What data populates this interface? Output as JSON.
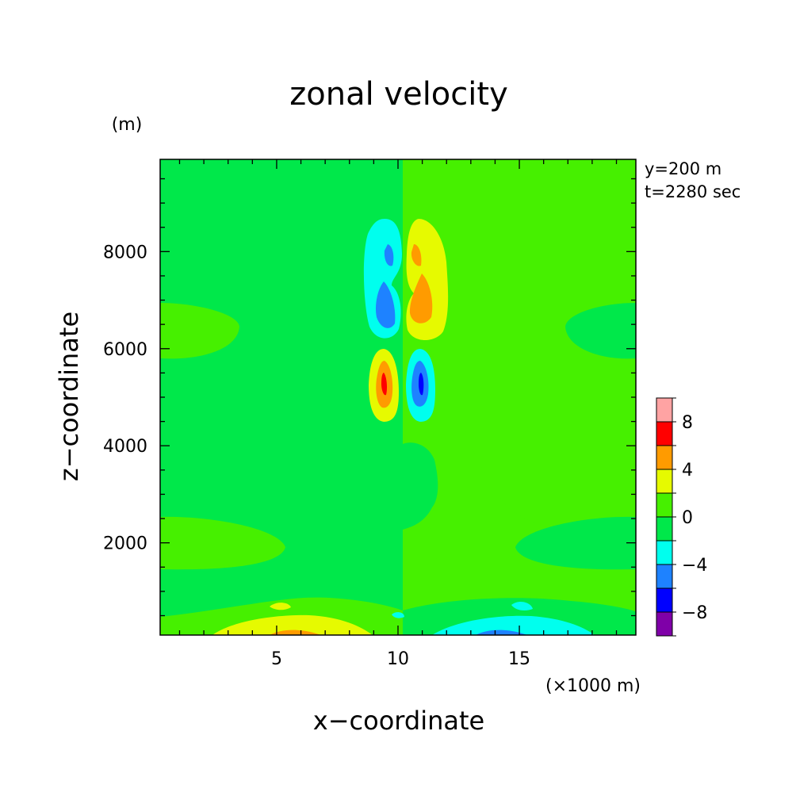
{
  "chart_data": {
    "type": "heatmap",
    "title": "zonal velocity",
    "xlabel": "x−coordinate",
    "ylabel": "z−coordinate",
    "x_unit": "(×1000 m)",
    "y_unit": "(m)",
    "annotations": [
      "y=200 m",
      "t=2280 sec"
    ],
    "xlim": [
      0.2,
      19.8
    ],
    "ylim": [
      100,
      9900
    ],
    "x_ticks": [
      5,
      10,
      15
    ],
    "x_tick_labels": [
      "5",
      "10",
      "15"
    ],
    "y_ticks": [
      2000,
      4000,
      6000,
      8000
    ],
    "y_tick_labels": [
      "2000",
      "4000",
      "6000",
      "8000"
    ],
    "colorbar": {
      "levels": [
        -10,
        -8,
        -6,
        -4,
        -2,
        0,
        2,
        4,
        6,
        8,
        10
      ],
      "tick_values": [
        -8,
        -4,
        0,
        4,
        8
      ],
      "tick_labels": [
        "−8",
        "−4",
        "0",
        "4",
        "8"
      ],
      "colors": [
        "#7f00a8",
        "#0000ff",
        "#1e82ff",
        "#00ffee",
        "#00e84a",
        "#46f000",
        "#e6fa00",
        "#ff9b00",
        "#ff0000",
        "#ffa3a3"
      ]
    },
    "background_level": "0 to 2",
    "features": [
      {
        "name": "upper-left-lobe",
        "center": [
          9.3,
          7500
        ],
        "half_width": [
          0.85,
          1150
        ],
        "levels": [
          -4,
          -6
        ]
      },
      {
        "name": "upper-right-lobe",
        "center": [
          11.0,
          7450
        ],
        "half_width": [
          0.9,
          1250
        ],
        "levels": [
          2,
          4
        ]
      },
      {
        "name": "middle-left-lobe",
        "center": [
          9.3,
          5350
        ],
        "half_width": [
          0.85,
          750
        ],
        "levels": [
          2,
          4,
          6
        ]
      },
      {
        "name": "middle-right-lobe",
        "center": [
          10.9,
          5350
        ],
        "half_width": [
          0.85,
          750
        ],
        "levels": [
          -4,
          -6,
          -8
        ]
      },
      {
        "name": "bottom-left-surface",
        "center": [
          5.5,
          100
        ],
        "half_width": [
          3.0,
          350
        ],
        "levels": [
          2,
          4
        ]
      },
      {
        "name": "bottom-right-surface",
        "center": [
          14.0,
          100
        ],
        "half_width": [
          3.0,
          380
        ],
        "levels": [
          -4,
          -6
        ]
      }
    ]
  }
}
